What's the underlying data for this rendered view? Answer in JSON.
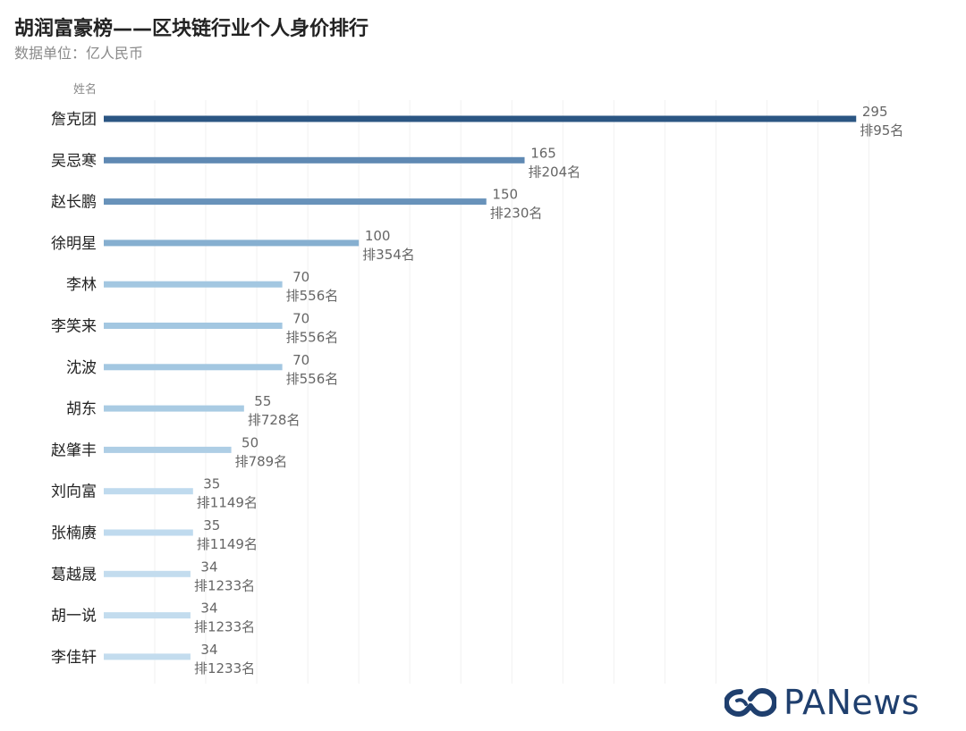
{
  "chart_data": {
    "type": "bar",
    "orientation": "horizontal",
    "title": "胡润富豪榜——区块链行业个人身价排行",
    "subtitle": "数据单位：亿人民币",
    "ylabel": "姓名",
    "xlim": [
      0,
      310
    ],
    "categories": [
      "詹克团",
      "吴忌寒",
      "赵长鹏",
      "徐明星",
      "李林",
      "李笑来",
      "沈波",
      "胡东",
      "赵肇丰",
      "刘向富",
      "张楠赓",
      "葛越晟",
      "胡一说",
      "李佳轩"
    ],
    "values": [
      295,
      165,
      150,
      100,
      70,
      70,
      70,
      55,
      50,
      35,
      35,
      34,
      34,
      34
    ],
    "ranks": [
      "排95名",
      "排204名",
      "排230名",
      "排354名",
      "排556名",
      "排556名",
      "排556名",
      "排728名",
      "排789名",
      "排1149名",
      "排1149名",
      "排1233名",
      "排1233名",
      "排1233名"
    ],
    "colors": [
      "#2b5683",
      "#5f89b3",
      "#6892ba",
      "#86afd0",
      "#a3c7e1",
      "#a3c7e1",
      "#a3c7e1",
      "#a9cbe3",
      "#aecee5",
      "#bfdaee",
      "#bfdaee",
      "#c3dcee",
      "#c3dcee",
      "#c3dcee"
    ]
  },
  "brand": {
    "name": "PANews",
    "color": "#1f3f6e"
  }
}
